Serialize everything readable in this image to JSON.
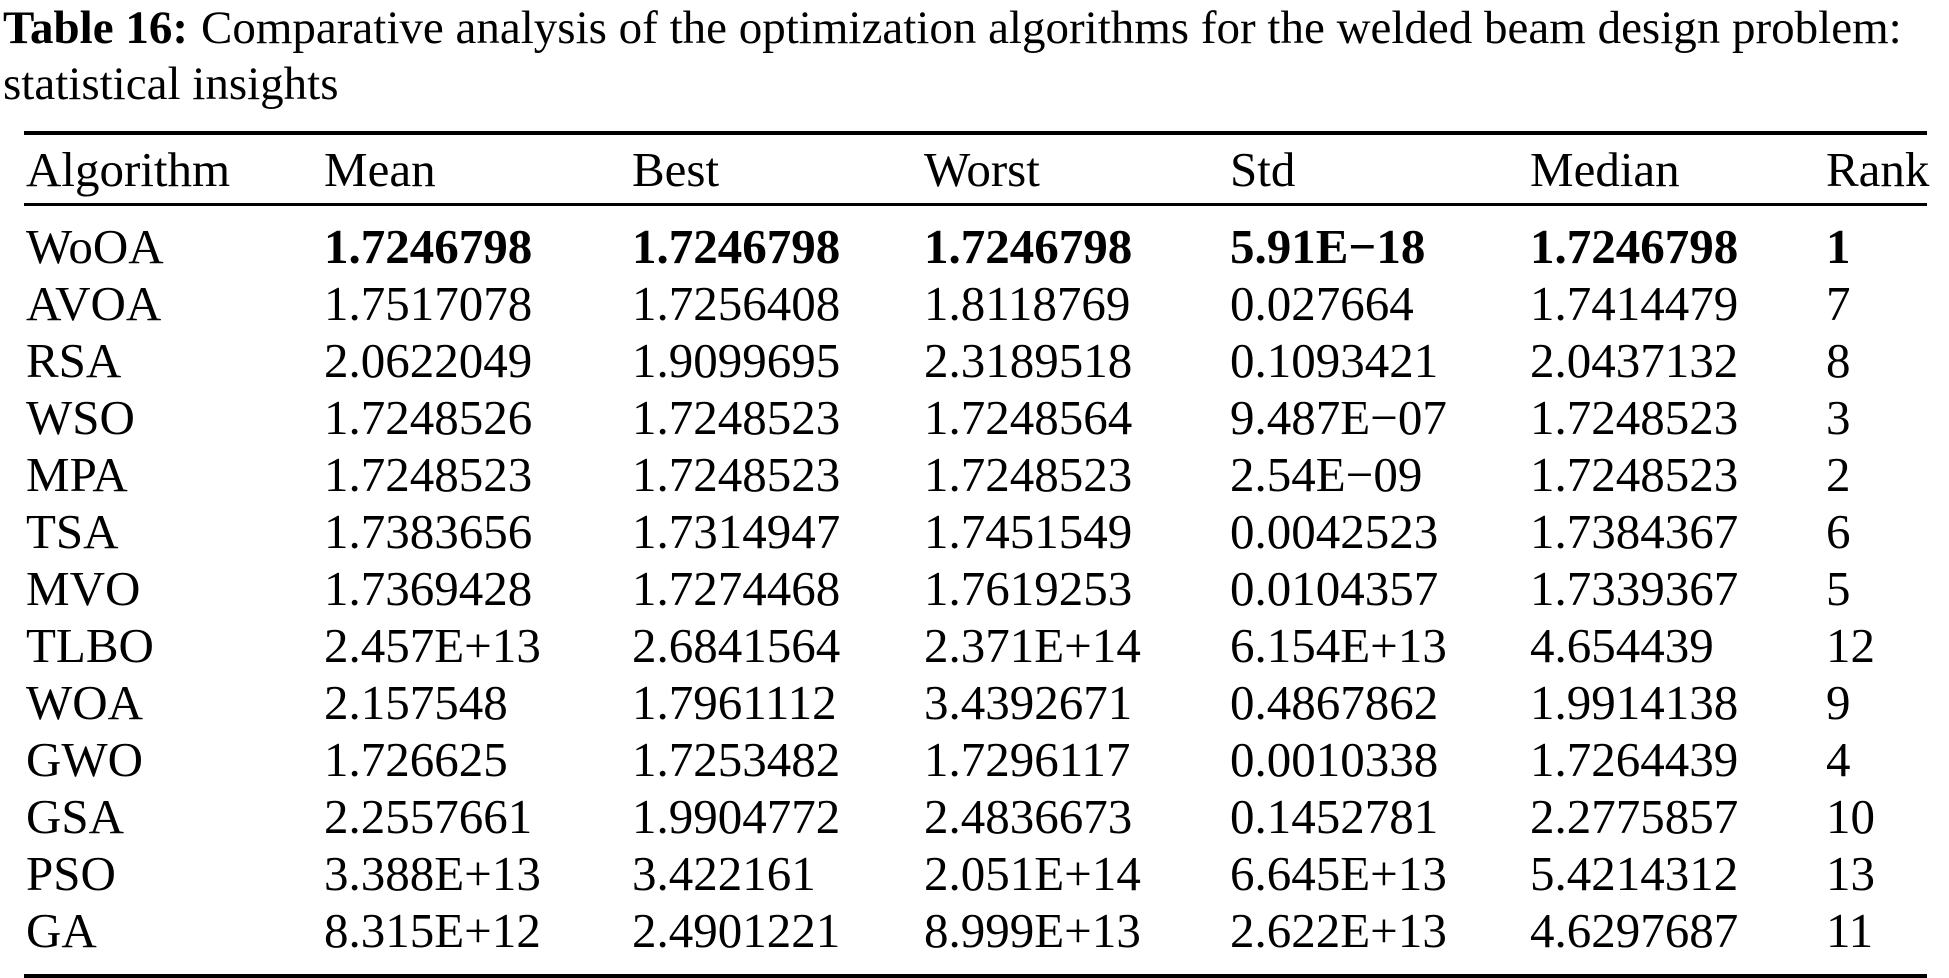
{
  "page": {
    "background": "#ffffff",
    "text_color": "#000000"
  },
  "caption": {
    "label": "Table 16:",
    "line1": "Comparative analysis of the optimization algorithms for the welded beam design problem:",
    "line2": "statistical insights"
  },
  "table": {
    "columns": [
      "Algorithm",
      "Mean",
      "Best",
      "Worst",
      "Std",
      "Median",
      "Rank"
    ],
    "rows": [
      {
        "algorithm": "WoOA",
        "mean": "1.7246798",
        "best": "1.7246798",
        "worst": "1.7246798",
        "std": "5.91E−18",
        "median": "1.7246798",
        "rank": "1",
        "highlight": true
      },
      {
        "algorithm": "AVOA",
        "mean": "1.7517078",
        "best": "1.7256408",
        "worst": "1.8118769",
        "std": "0.027664",
        "median": "1.7414479",
        "rank": "7",
        "highlight": false
      },
      {
        "algorithm": "RSA",
        "mean": "2.0622049",
        "best": "1.9099695",
        "worst": "2.3189518",
        "std": "0.1093421",
        "median": "2.0437132",
        "rank": "8",
        "highlight": false
      },
      {
        "algorithm": "WSO",
        "mean": "1.7248526",
        "best": "1.7248523",
        "worst": "1.7248564",
        "std": "9.487E−07",
        "median": "1.7248523",
        "rank": "3",
        "highlight": false
      },
      {
        "algorithm": "MPA",
        "mean": "1.7248523",
        "best": "1.7248523",
        "worst": "1.7248523",
        "std": "2.54E−09",
        "median": "1.7248523",
        "rank": "2",
        "highlight": false
      },
      {
        "algorithm": "TSA",
        "mean": "1.7383656",
        "best": "1.7314947",
        "worst": "1.7451549",
        "std": "0.0042523",
        "median": "1.7384367",
        "rank": "6",
        "highlight": false
      },
      {
        "algorithm": "MVO",
        "mean": "1.7369428",
        "best": "1.7274468",
        "worst": "1.7619253",
        "std": "0.0104357",
        "median": "1.7339367",
        "rank": "5",
        "highlight": false
      },
      {
        "algorithm": "TLBO",
        "mean": "2.457E+13",
        "best": "2.6841564",
        "worst": "2.371E+14",
        "std": "6.154E+13",
        "median": "4.654439",
        "rank": "12",
        "highlight": false
      },
      {
        "algorithm": "WOA",
        "mean": "2.157548",
        "best": "1.7961112",
        "worst": "3.4392671",
        "std": "0.4867862",
        "median": "1.9914138",
        "rank": "9",
        "highlight": false
      },
      {
        "algorithm": "GWO",
        "mean": "1.726625",
        "best": "1.7253482",
        "worst": "1.7296117",
        "std": "0.0010338",
        "median": "1.7264439",
        "rank": "4",
        "highlight": false
      },
      {
        "algorithm": "GSA",
        "mean": "2.2557661",
        "best": "1.9904772",
        "worst": "2.4836673",
        "std": "0.1452781",
        "median": "2.2775857",
        "rank": "10",
        "highlight": false
      },
      {
        "algorithm": "PSO",
        "mean": "3.388E+13",
        "best": "3.422161",
        "worst": "2.051E+14",
        "std": "6.645E+13",
        "median": "5.4214312",
        "rank": "13",
        "highlight": false
      },
      {
        "algorithm": "GA",
        "mean": "8.315E+12",
        "best": "2.4901221",
        "worst": "8.999E+13",
        "std": "2.622E+13",
        "median": "4.6297687",
        "rank": "11",
        "highlight": false
      }
    ]
  }
}
